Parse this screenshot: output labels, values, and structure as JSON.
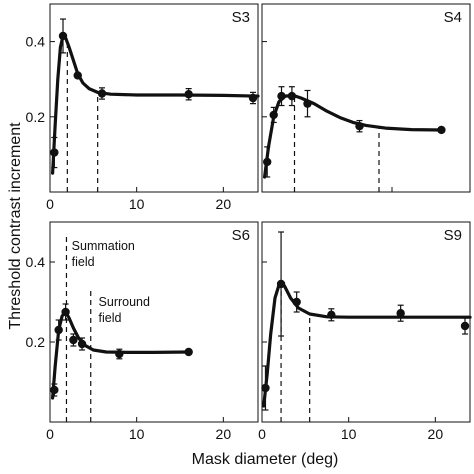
{
  "figure": {
    "ylabel": "Threshold contrast increment",
    "xlabel": "Mask diameter (deg)"
  },
  "chart_data": [
    {
      "type": "line",
      "title": "S3",
      "xlim": [
        0,
        24
      ],
      "ylim": [
        0,
        0.5
      ],
      "xticks": [
        "0",
        "10",
        "20"
      ],
      "yticks": [
        "0.2",
        "0.4"
      ],
      "points": [
        {
          "x": 0.5,
          "y": 0.105,
          "err": 0.04
        },
        {
          "x": 1.5,
          "y": 0.415,
          "err": 0.045
        },
        {
          "x": 3.2,
          "y": 0.31,
          "err": 0
        },
        {
          "x": 6.0,
          "y": 0.262,
          "err": 0.015
        },
        {
          "x": 16.0,
          "y": 0.26,
          "err": 0.015
        },
        {
          "x": 24.0,
          "y": 0.25,
          "err": 0.015
        }
      ],
      "fit": [
        [
          0.3,
          0.05
        ],
        [
          0.6,
          0.18
        ],
        [
          0.9,
          0.3
        ],
        [
          1.2,
          0.385
        ],
        [
          1.5,
          0.415
        ],
        [
          1.8,
          0.41
        ],
        [
          2.2,
          0.385
        ],
        [
          2.7,
          0.35
        ],
        [
          3.2,
          0.315
        ],
        [
          3.8,
          0.29
        ],
        [
          4.5,
          0.275
        ],
        [
          5.5,
          0.265
        ],
        [
          7,
          0.26
        ],
        [
          10,
          0.258
        ],
        [
          15,
          0.258
        ],
        [
          20,
          0.257
        ],
        [
          24,
          0.255
        ]
      ],
      "vlines": [
        2.0,
        5.5
      ]
    },
    {
      "type": "line",
      "title": "S4",
      "xlim": [
        0,
        16
      ],
      "ylim": [
        0,
        0.5
      ],
      "xticks": [],
      "yticks": [],
      "points": [
        {
          "x": 0.4,
          "y": 0.08,
          "err": 0.04
        },
        {
          "x": 0.9,
          "y": 0.205,
          "err": 0.02
        },
        {
          "x": 1.5,
          "y": 0.255,
          "err": 0.025
        },
        {
          "x": 2.3,
          "y": 0.255,
          "err": 0.025
        },
        {
          "x": 3.5,
          "y": 0.235,
          "err": 0.035
        },
        {
          "x": 7.5,
          "y": 0.175,
          "err": 0.015
        },
        {
          "x": 13.8,
          "y": 0.165,
          "err": 0
        }
      ],
      "fit": [
        [
          0.2,
          0.04
        ],
        [
          0.5,
          0.12
        ],
        [
          0.9,
          0.2
        ],
        [
          1.3,
          0.24
        ],
        [
          1.8,
          0.255
        ],
        [
          2.4,
          0.257
        ],
        [
          3,
          0.25
        ],
        [
          4,
          0.235
        ],
        [
          5,
          0.215
        ],
        [
          6,
          0.198
        ],
        [
          7,
          0.185
        ],
        [
          8,
          0.177
        ],
        [
          9.5,
          0.17
        ],
        [
          11.5,
          0.166
        ],
        [
          13.8,
          0.165
        ]
      ],
      "vlines": [
        2.5,
        9.0
      ]
    },
    {
      "type": "line",
      "title": "S6",
      "xlim": [
        0,
        24
      ],
      "ylim": [
        0,
        0.5
      ],
      "xticks": [
        "0",
        "10",
        "20"
      ],
      "yticks": [
        "0.2",
        "0.4"
      ],
      "points": [
        {
          "x": 0.5,
          "y": 0.08,
          "err": 0.015
        },
        {
          "x": 1.0,
          "y": 0.23,
          "err": 0.025
        },
        {
          "x": 1.8,
          "y": 0.275,
          "err": 0.02
        },
        {
          "x": 2.7,
          "y": 0.205,
          "err": 0.015
        },
        {
          "x": 3.7,
          "y": 0.195,
          "err": 0.015
        },
        {
          "x": 8.0,
          "y": 0.17,
          "err": 0.012
        },
        {
          "x": 16.0,
          "y": 0.175,
          "err": 0
        }
      ],
      "fit": [
        [
          0.3,
          0.06
        ],
        [
          0.6,
          0.14
        ],
        [
          1.0,
          0.23
        ],
        [
          1.4,
          0.265
        ],
        [
          1.8,
          0.275
        ],
        [
          2.2,
          0.26
        ],
        [
          2.7,
          0.235
        ],
        [
          3.3,
          0.21
        ],
        [
          4,
          0.192
        ],
        [
          5,
          0.18
        ],
        [
          6.5,
          0.175
        ],
        [
          9,
          0.174
        ],
        [
          12,
          0.174
        ],
        [
          16,
          0.175
        ]
      ],
      "vlines": [
        1.9,
        4.7
      ],
      "annotations": [
        {
          "text": "Summation",
          "x": 2.5,
          "y": 0.43
        },
        {
          "text": "field",
          "x": 2.5,
          "y": 0.39
        },
        {
          "text": "Surround",
          "x": 5.6,
          "y": 0.29
        },
        {
          "text": "field",
          "x": 5.6,
          "y": 0.25
        }
      ]
    },
    {
      "type": "line",
      "title": "S9",
      "xlim": [
        0,
        24
      ],
      "ylim": [
        0,
        0.5
      ],
      "xticks": [
        "0",
        "10",
        "20"
      ],
      "yticks": [],
      "points": [
        {
          "x": 0.4,
          "y": 0.085,
          "err": 0.055
        },
        {
          "x": 2.2,
          "y": 0.345,
          "err": 0.13
        },
        {
          "x": 4.0,
          "y": 0.3,
          "err": 0.025
        },
        {
          "x": 8.0,
          "y": 0.268,
          "err": 0.015
        },
        {
          "x": 16.0,
          "y": 0.272,
          "err": 0.02
        },
        {
          "x": 24.0,
          "y": 0.24,
          "err": 0.02
        }
      ],
      "fit": [
        [
          0.2,
          0.04
        ],
        [
          0.6,
          0.12
        ],
        [
          1.0,
          0.22
        ],
        [
          1.5,
          0.31
        ],
        [
          2.0,
          0.345
        ],
        [
          2.6,
          0.34
        ],
        [
          3.3,
          0.31
        ],
        [
          4.2,
          0.285
        ],
        [
          5.5,
          0.27
        ],
        [
          7.5,
          0.263
        ],
        [
          10,
          0.262
        ],
        [
          15,
          0.262
        ],
        [
          20,
          0.262
        ],
        [
          24,
          0.262
        ]
      ],
      "vlines": [
        2.2,
        5.5
      ]
    }
  ]
}
